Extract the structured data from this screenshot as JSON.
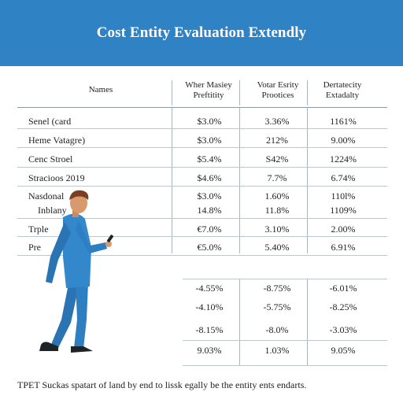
{
  "header": {
    "title": "Cost Entity Evaluation Extendly",
    "color": "#2f82c3"
  },
  "table": {
    "columns": [
      {
        "line1": "Names",
        "line2": ""
      },
      {
        "line1": "Wher Masiey",
        "line2": "Preftitity"
      },
      {
        "line1": "Votar Esrity",
        "line2": "Prootices"
      },
      {
        "line1": "Dertatecity",
        "line2": "Extadalty"
      }
    ],
    "rows": [
      {
        "name": "Senel (card",
        "c1": "$3.0%",
        "c2": "3.36%",
        "c3": "1161%"
      },
      {
        "name": "Heme Vatagre)",
        "c1": "$3.0%",
        "c2": "212%",
        "c3": "9.00%"
      },
      {
        "name": "Cenc Stroel",
        "c1": "$5.4%",
        "c2": "S42%",
        "c3": "1224%"
      },
      {
        "name": "Stracioos 2019",
        "c1": "$4.6%",
        "c2": "7.7%",
        "c3": "6.74%"
      },
      {
        "name": "Nasdonal",
        "c1": "$3.0%",
        "c2": "1.60%",
        "c3": "110l%"
      },
      {
        "name": "Inblany",
        "c1": "14.8%",
        "c2": "11.8%",
        "c3": "1109%"
      },
      {
        "name": "Trple",
        "c1": "€7.0%",
        "c2": "3.10%",
        "c3": "2.00%"
      },
      {
        "name": "Pre",
        "c1": "€5.0%",
        "c2": "5.40%",
        "c3": "6.91%"
      }
    ],
    "lower_rows": [
      {
        "c1": "-4.55%",
        "c2": "-8.75%",
        "c3": "-6.01%"
      },
      {
        "c1": "-4.10%",
        "c2": "-5.75%",
        "c3": "-8.25%"
      },
      {
        "c1": "-8.15%",
        "c2": "-8.0%",
        "c3": "-3.03%"
      },
      {
        "c1": "9.03%",
        "c2": "1.03%",
        "c3": "9.05%"
      }
    ]
  },
  "footer": {
    "text": "TPET Suckas spatart of land by end to lissk egally be the entity ents endarts."
  },
  "illustration": {
    "subject": "man-looking-at-phone",
    "suit_color": "#2e7fc1",
    "hair_color": "#7a3f22",
    "skin_color": "#d89a6d"
  }
}
